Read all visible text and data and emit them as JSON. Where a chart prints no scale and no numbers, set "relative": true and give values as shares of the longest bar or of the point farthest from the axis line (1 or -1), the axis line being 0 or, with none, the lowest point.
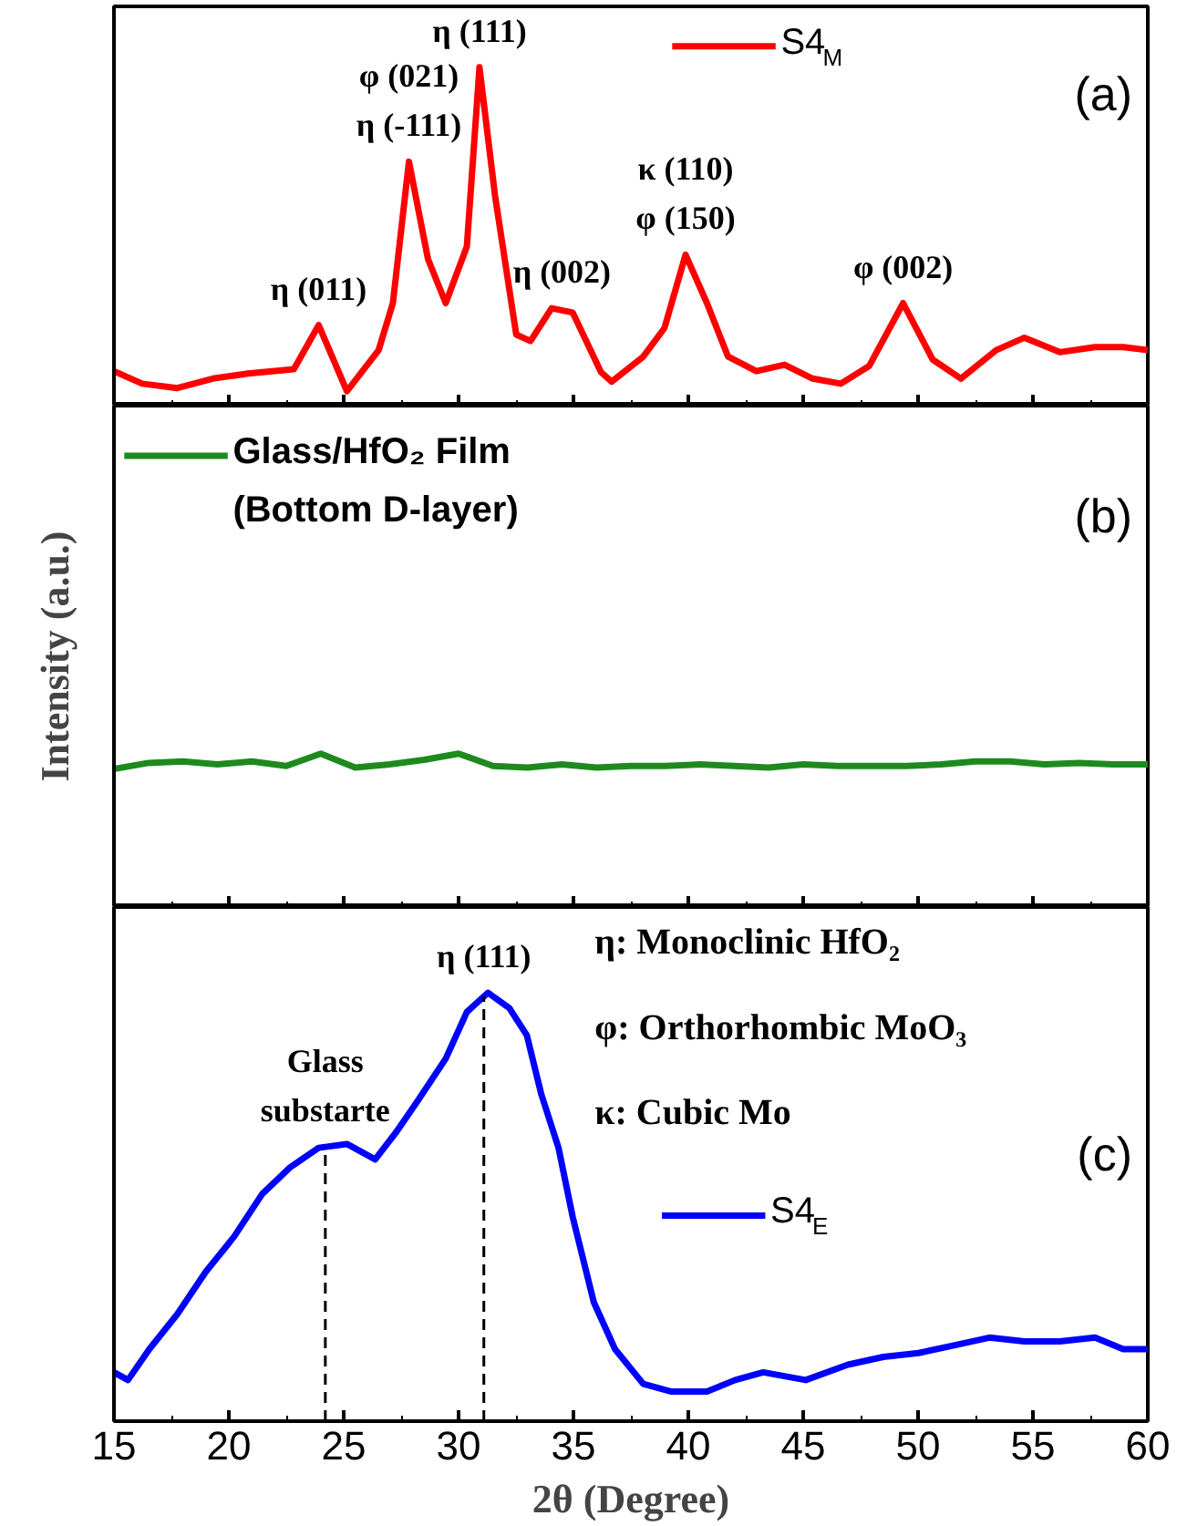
{
  "chart_data": [
    {
      "type": "line",
      "title": "(a)",
      "relative": true,
      "xlim": [
        15,
        60
      ],
      "xticks": [
        15,
        20,
        25,
        30,
        35,
        40,
        45,
        50,
        55,
        60
      ],
      "tick_labels": false,
      "legend": "top",
      "grid": false,
      "x": [
        15.0,
        16.23,
        17.76,
        19.3,
        20.84,
        22.83,
        23.91,
        25.14,
        26.52,
        27.14,
        27.84,
        28.67,
        29.44,
        30.36,
        30.91,
        31.59,
        32.51,
        33.13,
        34.05,
        34.97,
        36.2,
        36.66,
        38.04,
        38.96,
        39.88,
        40.81,
        41.73,
        42.96,
        44.19,
        45.41,
        46.64,
        47.87,
        49.35,
        50.64,
        51.87,
        53.4,
        54.63,
        56.17,
        57.7,
        58.93,
        60.0
      ],
      "series": [
        {
          "name": "S4$_{M}$",
          "color": "#ff0000",
          "values": [
            0.102,
            0.065,
            0.052,
            0.08,
            0.095,
            0.108,
            0.238,
            0.043,
            0.164,
            0.303,
            0.721,
            0.433,
            0.303,
            0.47,
            1.0,
            0.619,
            0.21,
            0.191,
            0.288,
            0.275,
            0.099,
            0.071,
            0.145,
            0.229,
            0.446,
            0.303,
            0.145,
            0.102,
            0.121,
            0.08,
            0.065,
            0.117,
            0.303,
            0.136,
            0.08,
            0.164,
            0.201,
            0.158,
            0.173,
            0.173,
            0.164
          ]
        }
      ],
      "annotations": [
        {
          "text": "η (011)",
          "x": 23.91,
          "y": 0.238
        },
        {
          "text": "φ (021)\nη (-111)",
          "x": 27.84,
          "y": 0.721
        },
        {
          "text": "η (111)",
          "x": 30.91,
          "y": 1.0
        },
        {
          "text": "η (002)",
          "x": 34.5,
          "y": 0.288
        },
        {
          "text": "κ (110)\nφ (150)",
          "x": 39.88,
          "y": 0.446
        },
        {
          "text": "φ (002)",
          "x": 49.35,
          "y": 0.303
        }
      ]
    },
    {
      "type": "line",
      "title": "(b)",
      "relative": true,
      "ylabel": "Intensity (a.u.)",
      "xlim": [
        15,
        60
      ],
      "xticks": [
        15,
        20,
        25,
        30,
        35,
        40,
        45,
        50,
        55,
        60
      ],
      "tick_labels": false,
      "legend": "top left",
      "grid": false,
      "x": [
        15,
        16.5,
        18,
        19.5,
        21,
        22.5,
        24,
        25.5,
        27,
        28.5,
        30,
        31.5,
        33,
        34.5,
        36,
        37.5,
        39,
        40.5,
        42,
        43.5,
        45,
        46.5,
        48,
        49.5,
        51,
        52.5,
        54,
        55.5,
        57,
        58.5,
        60
      ],
      "series": [
        {
          "name": "Glass/HfO₂ Film\n(Bottom D-layer)",
          "color": "#1e8a1e",
          "values": [
            0.9,
            0.94,
            0.95,
            0.93,
            0.95,
            0.92,
            1.0,
            0.91,
            0.93,
            0.96,
            1.0,
            0.92,
            0.91,
            0.93,
            0.91,
            0.92,
            0.92,
            0.93,
            0.92,
            0.91,
            0.93,
            0.92,
            0.92,
            0.92,
            0.93,
            0.95,
            0.95,
            0.93,
            0.94,
            0.93,
            0.93
          ]
        }
      ]
    },
    {
      "type": "line",
      "title": "(c)",
      "relative": true,
      "xlabel": "2θ (Degree)",
      "xlim": [
        15,
        60
      ],
      "xticks": [
        15,
        20,
        25,
        30,
        35,
        40,
        45,
        50,
        55,
        60
      ],
      "tick_labels": "x",
      "legend": "right",
      "grid": false,
      "x": [
        15.0,
        15.61,
        16.54,
        17.76,
        19.0,
        20.22,
        21.45,
        22.68,
        23.91,
        25.14,
        26.37,
        27.29,
        28.21,
        29.44,
        30.36,
        31.28,
        32.21,
        32.97,
        33.59,
        34.35,
        34.97,
        35.89,
        36.81,
        38.04,
        39.27,
        40.81,
        42.04,
        43.26,
        45.11,
        46.95,
        48.49,
        50.02,
        51.56,
        53.1,
        54.63,
        56.17,
        57.7,
        58.93,
        60.0
      ],
      "series": [
        {
          "name": "S4$_{E}$",
          "color": "#0000ff",
          "values": [
            0.114,
            0.096,
            0.168,
            0.25,
            0.349,
            0.43,
            0.53,
            0.593,
            0.638,
            0.647,
            0.611,
            0.675,
            0.747,
            0.846,
            0.955,
            1.0,
            0.964,
            0.901,
            0.765,
            0.638,
            0.476,
            0.277,
            0.168,
            0.087,
            0.069,
            0.069,
            0.096,
            0.114,
            0.096,
            0.132,
            0.15,
            0.159,
            0.177,
            0.195,
            0.186,
            0.186,
            0.195,
            0.168,
            0.168
          ]
        }
      ],
      "ref_lines": [
        {
          "axis": "x",
          "value": 24.2,
          "color": "#000000",
          "line_style": "dashed"
        },
        {
          "axis": "x",
          "value": 31.1,
          "color": "#000000",
          "line_style": "dashed"
        }
      ],
      "annotations": [
        {
          "text": "η (111)",
          "x": 31.1,
          "y": 1.0
        },
        {
          "text": "Glass\nsubstarte",
          "x": 24.2,
          "y": 0.64
        },
        "η: Monoclinic HfO₂",
        "φ: Orthorhombic MoO₃",
        "κ:  Cubic Mo"
      ]
    }
  ]
}
